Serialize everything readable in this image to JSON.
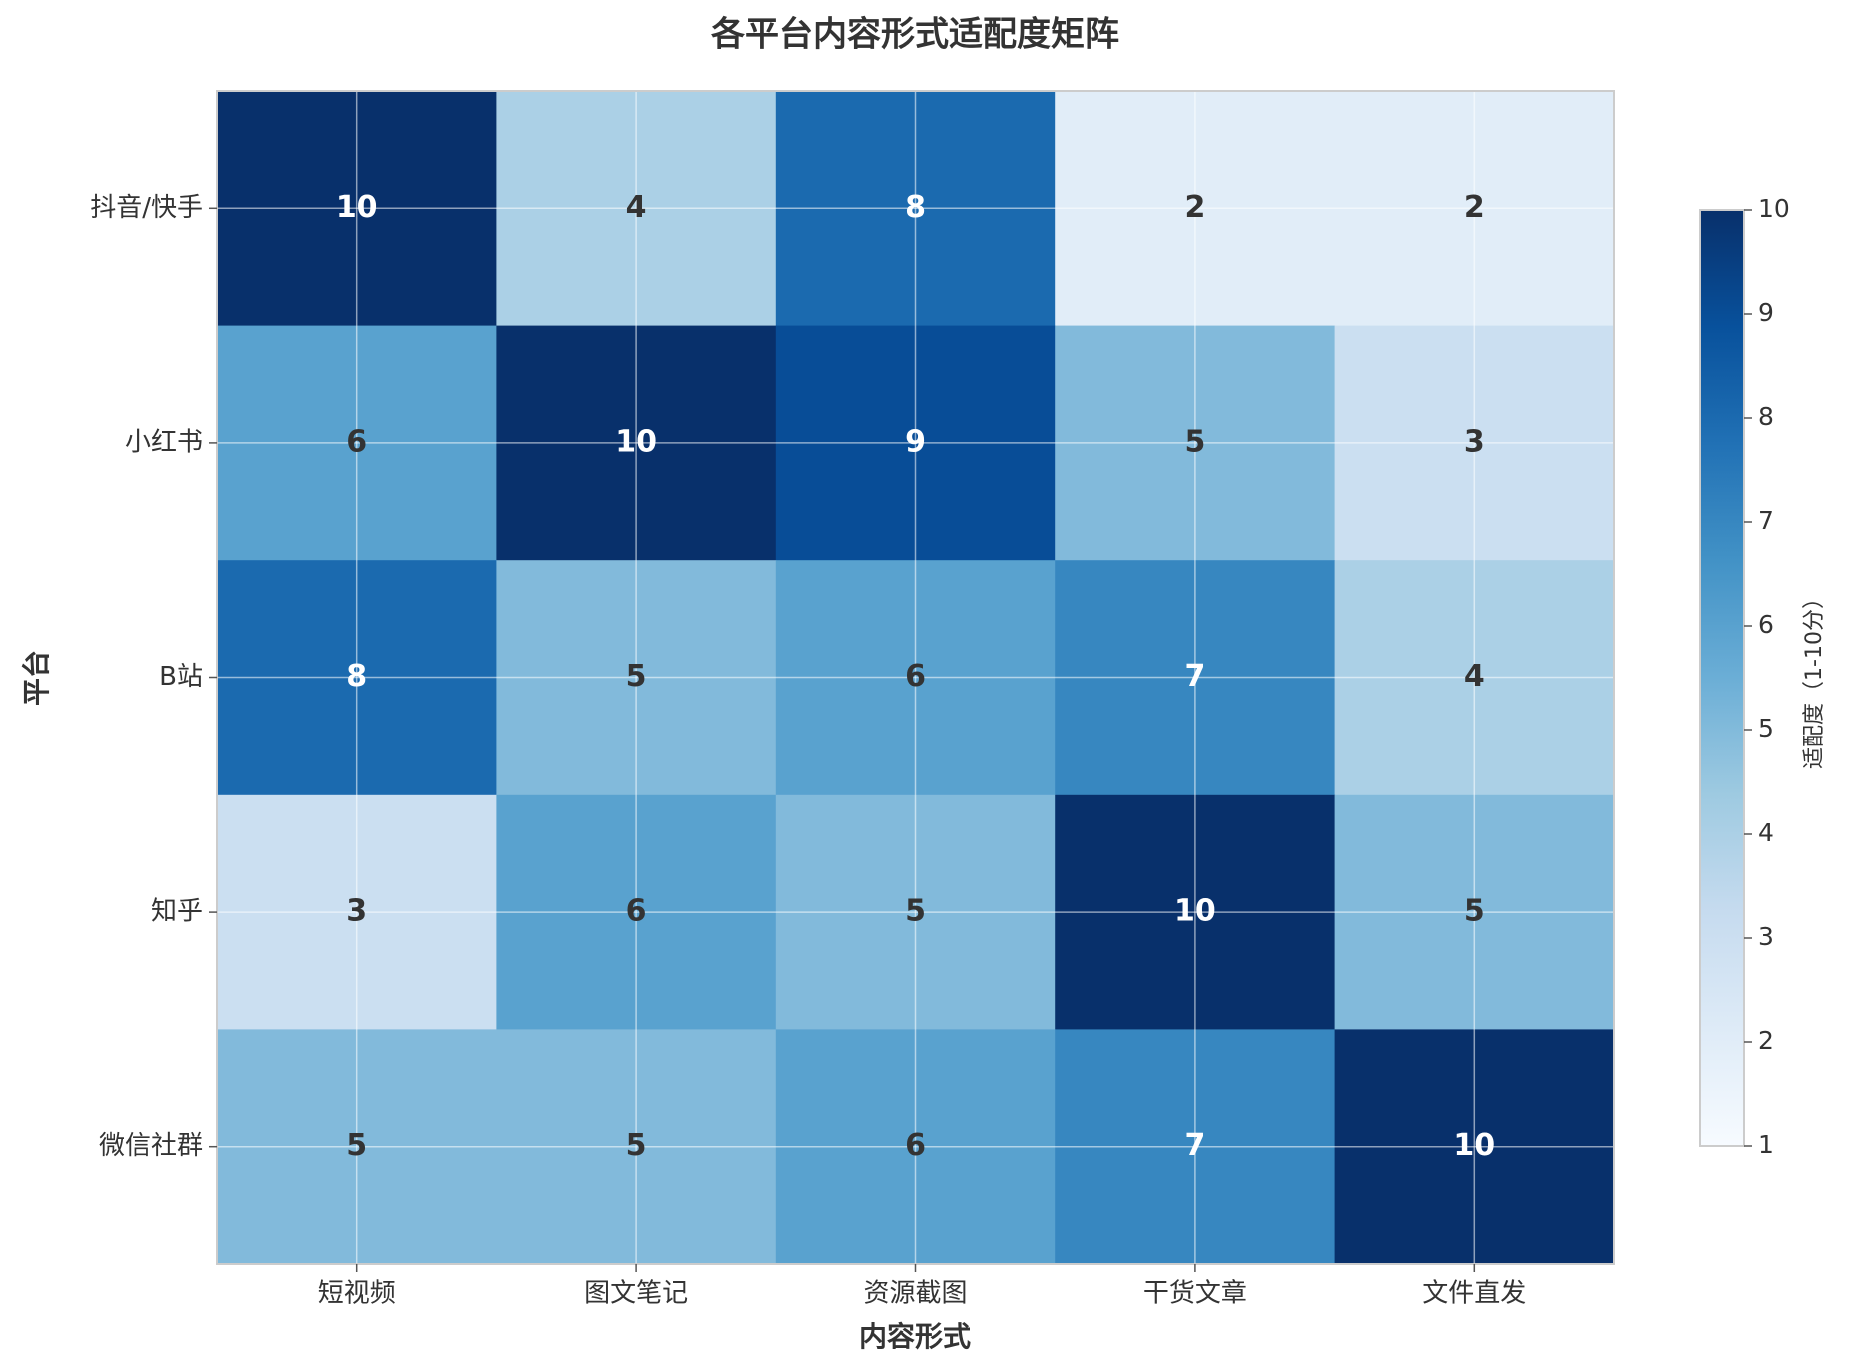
{
  "chart_data": {
    "type": "heatmap",
    "title": "各平台内容形式适配度矩阵",
    "x_label": "内容形式",
    "y_label": "平台",
    "x_categories": [
      "短视频",
      "图文笔记",
      "资源截图",
      "干货文章",
      "文件直发"
    ],
    "y_categories": [
      "抖音/快手",
      "小红书",
      "B站",
      "知乎",
      "微信社群"
    ],
    "values": [
      [
        10,
        4,
        8,
        2,
        2
      ],
      [
        6,
        10,
        9,
        5,
        3
      ],
      [
        8,
        5,
        6,
        7,
        4
      ],
      [
        3,
        6,
        5,
        10,
        5
      ],
      [
        5,
        5,
        6,
        7,
        10
      ]
    ],
    "colormap": "Blues",
    "clim": [
      1,
      10
    ],
    "colorbar": {
      "label": "适配度（1-10分）",
      "ticks": [
        1,
        2,
        3,
        4,
        5,
        6,
        7,
        8,
        9,
        10
      ]
    },
    "grid": true
  }
}
